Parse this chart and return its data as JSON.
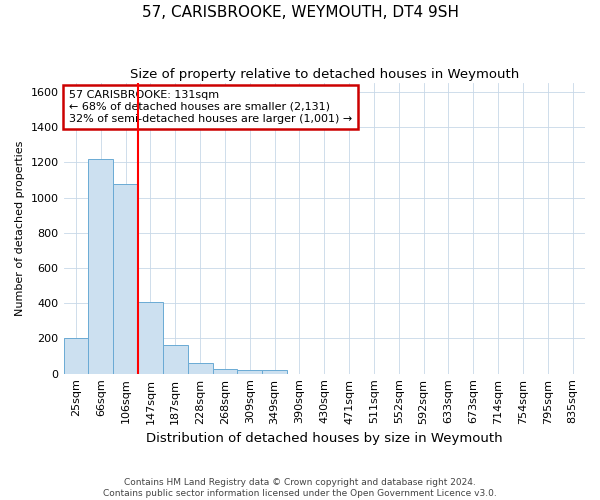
{
  "title": "57, CARISBROOKE, WEYMOUTH, DT4 9SH",
  "subtitle": "Size of property relative to detached houses in Weymouth",
  "xlabel": "Distribution of detached houses by size in Weymouth",
  "ylabel": "Number of detached properties",
  "footnote1": "Contains HM Land Registry data © Crown copyright and database right 2024.",
  "footnote2": "Contains public sector information licensed under the Open Government Licence v3.0.",
  "categories": [
    "25sqm",
    "66sqm",
    "106sqm",
    "147sqm",
    "187sqm",
    "228sqm",
    "268sqm",
    "309sqm",
    "349sqm",
    "390sqm",
    "430sqm",
    "471sqm",
    "511sqm",
    "552sqm",
    "592sqm",
    "633sqm",
    "673sqm",
    "714sqm",
    "754sqm",
    "795sqm",
    "835sqm"
  ],
  "values": [
    205,
    1220,
    1075,
    405,
    160,
    60,
    25,
    20,
    20,
    0,
    0,
    0,
    0,
    0,
    0,
    0,
    0,
    0,
    0,
    0,
    0
  ],
  "bar_color": "#cce0f0",
  "bar_edge_color": "#6aaad4",
  "red_line_x": 2.5,
  "annotation_line1": "57 CARISBROOKE: 131sqm",
  "annotation_line2": "← 68% of detached houses are smaller (2,131)",
  "annotation_line3": "32% of semi-detached houses are larger (1,001) →",
  "annotation_box_color": "#ffffff",
  "annotation_box_edge_color": "#cc0000",
  "ylim": [
    0,
    1650
  ],
  "yticks": [
    0,
    200,
    400,
    600,
    800,
    1000,
    1200,
    1400,
    1600
  ],
  "background_color": "#ffffff",
  "grid_color": "#c8d8e8",
  "title_fontsize": 11,
  "subtitle_fontsize": 9.5,
  "ylabel_fontsize": 8,
  "xlabel_fontsize": 9.5,
  "tick_fontsize": 8,
  "annot_fontsize": 8,
  "footnote_fontsize": 6.5
}
